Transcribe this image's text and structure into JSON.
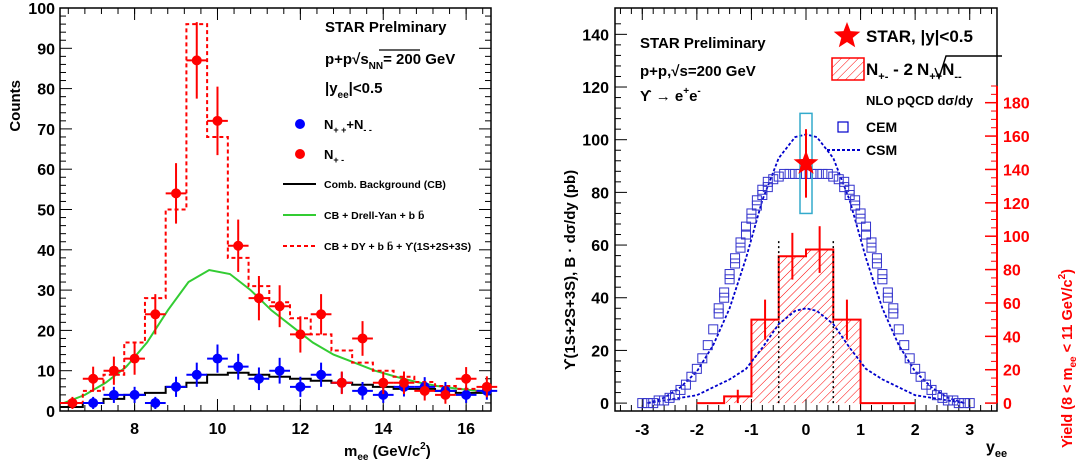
{
  "chart_data": [
    {
      "type": "scatter",
      "title": "STAR Prelminary",
      "subtitle_lines": [
        "p+p",
        "√s",
        "NN",
        "= 200 GeV",
        "|y",
        "ee",
        "|<0.5"
      ],
      "xlabel": "m",
      "xlabel_sub": "ee",
      "xlabel_unit": "(GeV/c",
      "xlabel_unit_sup": "2",
      "xlabel_unit_close": ")",
      "ylabel": "Counts",
      "xlim": [
        6.2,
        16.6
      ],
      "ylim": [
        0,
        100
      ],
      "xticks": [
        "8",
        "10",
        "12",
        "14",
        "16"
      ],
      "yticks": [
        "0",
        "10",
        "20",
        "30",
        "40",
        "50",
        "60",
        "70",
        "80",
        "90",
        "100"
      ],
      "legend": [
        {
          "label": "N",
          "sub": "+ +",
          "label2": "+N",
          "sub2": "- -",
          "kind": "marker",
          "color": "#0000ff"
        },
        {
          "label": "N",
          "sub": "+ -",
          "kind": "marker",
          "color": "#ff0000"
        },
        {
          "label": "Comb. Background (CB)",
          "kind": "line",
          "color": "#000000"
        },
        {
          "label": "CB + Drell-Yan + b b̄",
          "kind": "line",
          "color": "#33cc33"
        },
        {
          "label": "CB + DY + b b̄ + ϒ(1S+2S+3S)",
          "kind": "dash",
          "color": "#ff0000"
        }
      ],
      "series": [
        {
          "name": "N++ + N--",
          "color": "#0000ff",
          "x": [
            7.0,
            7.5,
            8.0,
            8.5,
            9.0,
            9.5,
            10.0,
            10.5,
            11.0,
            11.5,
            12.0,
            12.5,
            13.0,
            13.5,
            14.0,
            14.5,
            15.0,
            15.5,
            16.0,
            16.5
          ],
          "y": [
            2,
            4,
            4,
            2,
            6,
            9,
            13,
            11,
            8,
            10,
            6,
            9,
            7,
            5,
            4,
            6,
            6,
            5,
            4,
            5
          ],
          "err": [
            1.5,
            2,
            2,
            1.5,
            2.5,
            3,
            3.5,
            3.2,
            2.8,
            3.2,
            2.5,
            3,
            2.6,
            2.2,
            2,
            2.4,
            2.4,
            2.2,
            2,
            2.2
          ]
        },
        {
          "name": "N+-",
          "color": "#ff0000",
          "x": [
            6.5,
            7.0,
            7.5,
            8.0,
            8.5,
            9.0,
            9.5,
            10.0,
            10.5,
            11.0,
            11.5,
            12.0,
            12.5,
            13.0,
            13.5,
            14.0,
            14.5,
            15.0,
            15.5,
            16.0,
            16.5
          ],
          "y": [
            2,
            8,
            10,
            13,
            24,
            54,
            87,
            72,
            41,
            28,
            26,
            19,
            24,
            7,
            18,
            7,
            7,
            5,
            4,
            8,
            6
          ],
          "err": [
            1.5,
            3,
            3.5,
            4,
            5,
            7.5,
            9.5,
            8.5,
            6.5,
            5.5,
            5.2,
            4.5,
            5,
            2.8,
            4.3,
            2.8,
            2.8,
            2.4,
            2.2,
            2.9,
            2.6
          ]
        }
      ],
      "curves": [
        {
          "name": "Comb. Background (CB)",
          "color": "#000000",
          "step": true,
          "x": [
            6.2,
            6.75,
            7.25,
            7.75,
            8.25,
            8.75,
            9.25,
            9.75,
            10.25,
            10.75,
            11.25,
            11.75,
            12.25,
            12.75,
            13.25,
            13.75,
            14.25,
            14.75,
            15.25,
            15.75,
            16.25,
            16.6
          ],
          "y": [
            1,
            2,
            3,
            4,
            4.5,
            6,
            7,
            9,
            9.5,
            9,
            8.5,
            8,
            7.5,
            7,
            6.5,
            6,
            5.5,
            5.5,
            5,
            4.5,
            4.5,
            4.5
          ]
        },
        {
          "name": "CB + Drell-Yan + b b̄",
          "color": "#33cc33",
          "step": false,
          "x": [
            6.3,
            6.8,
            7.3,
            7.8,
            8.3,
            8.8,
            9.3,
            9.8,
            10.3,
            10.8,
            11.3,
            11.8,
            12.3,
            12.8,
            13.3,
            13.8,
            14.3,
            14.8,
            15.3,
            15.8,
            16.3,
            16.6
          ],
          "y": [
            2,
            4,
            7,
            11,
            17,
            25,
            32,
            35,
            34,
            30,
            25,
            21,
            17,
            14,
            12,
            10,
            8.5,
            7.2,
            6.2,
            5.5,
            5,
            4.5
          ]
        },
        {
          "name": "CB + DY + b b̄ + ϒ(1S+2S+3S)",
          "color": "#ff0000",
          "step": true,
          "dashed": true,
          "x": [
            6.2,
            6.75,
            7.25,
            7.75,
            8.25,
            8.75,
            9.25,
            9.75,
            10.25,
            10.75,
            11.25,
            11.75,
            12.25,
            12.75,
            13.25,
            13.75,
            14.25,
            14.75,
            15.25,
            15.75,
            16.25,
            16.6
          ],
          "y": [
            2,
            5,
            9,
            17,
            28,
            50,
            96,
            68,
            38,
            31,
            27,
            23,
            19,
            15,
            12,
            10,
            8.5,
            7.2,
            6.2,
            5.5,
            5,
            4.5
          ]
        }
      ]
    },
    {
      "type": "scatter",
      "title": "STAR Preliminary",
      "subtitle_lines": [
        "p+p,√s=200 GeV",
        "ϒ → e",
        "+",
        "e",
        "-"
      ],
      "xlabel": "y",
      "xlabel_sub": "ee",
      "ylabel": "ϒ(1S+2S+3S),  B · dσ/dy (pb)",
      "ylabel_right": "Yield (8 < m",
      "ylabel_right_sub": "ee",
      "ylabel_right_tail": " < 11 GeV/c",
      "ylabel_right_sup": "2",
      "ylabel_right_close": ")",
      "xlim": [
        -3.5,
        3.5
      ],
      "ylim": [
        -3,
        150
      ],
      "ylim_right": [
        0,
        190
      ],
      "xticks": [
        "-3",
        "-2",
        "-1",
        "0",
        "1",
        "2",
        "3"
      ],
      "yticks": [
        "0",
        "20",
        "40",
        "60",
        "80",
        "100",
        "120",
        "140"
      ],
      "yticks_right": [
        "0",
        "20",
        "40",
        "60",
        "80",
        "100",
        "120",
        "140",
        "160",
        "180"
      ],
      "legend": [
        {
          "label": "STAR, |y|<0.5",
          "kind": "star",
          "color": "#ff0000"
        },
        {
          "label": "N",
          "sub": "+-",
          "label2": " - 2",
          "sqrt": "N",
          "sqrt_sub": "++",
          "sqrt2": "N",
          "sqrt_sub2": "--",
          "kind": "hatch",
          "color": "#ff0000"
        },
        {
          "label": "NLO pQCD dσ/dy",
          "kind": "header",
          "color": "#000000"
        },
        {
          "label": "CEM",
          "kind": "square",
          "color": "#0000cc"
        },
        {
          "label": "CSM",
          "kind": "dash",
          "color": "#0000cc"
        }
      ],
      "star_point": {
        "x": 0.0,
        "y": 91,
        "err": 13,
        "box_y": [
          72,
          110
        ]
      },
      "cem": {
        "color": "#3333cc",
        "x": [
          -3.0,
          -2.9,
          -2.8,
          -2.7,
          -2.6,
          -2.5,
          -2.4,
          -2.3,
          -2.2,
          -2.1,
          -2.0,
          -1.9,
          -1.8,
          -1.7,
          -1.6,
          -1.5,
          -1.4,
          -1.3,
          -1.2,
          -1.1,
          -1.0,
          -0.9,
          -0.8,
          -0.7,
          -0.6,
          -0.5,
          -0.4,
          -0.3,
          -0.2,
          -0.1,
          0.0,
          0.1,
          0.2,
          0.3,
          0.4,
          0.5,
          0.6,
          0.7,
          0.8,
          0.9,
          1.0,
          1.1,
          1.2,
          1.3,
          1.4,
          1.5,
          1.6,
          1.7,
          1.8,
          1.9,
          2.0,
          2.1,
          2.2,
          2.3,
          2.4,
          2.5,
          2.6,
          2.7,
          2.8,
          2.9,
          3.0
        ],
        "y": [
          0,
          0,
          0,
          1,
          1,
          2,
          3,
          5,
          7,
          10,
          13,
          17,
          22,
          28,
          34,
          40,
          47,
          53,
          59,
          64,
          70,
          75,
          79,
          82,
          85,
          86,
          87,
          87,
          87,
          87,
          87,
          87,
          87,
          87,
          87,
          86,
          85,
          82,
          79,
          75,
          70,
          64,
          59,
          53,
          47,
          40,
          34,
          28,
          22,
          17,
          13,
          10,
          7,
          5,
          3,
          2,
          1,
          1,
          0,
          0,
          0
        ],
        "upper": [
          0,
          0,
          0,
          1,
          1,
          2,
          3,
          5,
          8,
          11,
          14,
          18,
          23,
          29,
          36,
          42,
          49,
          55,
          61,
          67,
          72,
          77,
          81,
          84,
          86,
          87,
          87,
          87,
          87,
          87,
          87,
          87,
          87,
          87,
          87,
          87,
          86,
          84,
          81,
          77,
          72,
          67,
          61,
          55,
          49,
          42,
          36,
          29,
          23,
          18,
          14,
          11,
          8,
          5,
          3,
          2,
          1,
          1,
          0,
          0,
          0
        ]
      },
      "csm": {
        "color": "#0000cc",
        "upper": {
          "x": [
            -2.9,
            -2.6,
            -2.3,
            -2.0,
            -1.7,
            -1.4,
            -1.1,
            -0.8,
            -0.5,
            -0.2,
            0.0,
            0.2,
            0.5,
            0.8,
            1.1,
            1.4,
            1.7,
            2.0,
            2.3,
            2.6,
            2.9
          ],
          "y": [
            0,
            2,
            6,
            12,
            22,
            36,
            55,
            77,
            93,
            101,
            102,
            101,
            93,
            77,
            55,
            36,
            22,
            12,
            6,
            2,
            0
          ]
        },
        "lower": {
          "x": [
            -2.9,
            -2.6,
            -2.3,
            -2.0,
            -1.7,
            -1.4,
            -1.1,
            -0.8,
            -0.5,
            -0.2,
            0.0,
            0.2,
            0.5,
            0.8,
            1.1,
            1.4,
            1.7,
            2.0,
            2.3,
            2.6,
            2.9
          ],
          "y": [
            0,
            1,
            2,
            3,
            6,
            9,
            13,
            21,
            30,
            35,
            36,
            35,
            30,
            21,
            13,
            9,
            6,
            3,
            2,
            1,
            0
          ]
        }
      },
      "yield_hist": {
        "color": "#ff0000",
        "edges": [
          -2.0,
          -1.5,
          -1.0,
          -0.5,
          0.0,
          0.5,
          1.0,
          1.5,
          2.0
        ],
        "values_right": [
          0,
          4,
          50,
          88,
          92,
          50,
          0,
          0
        ],
        "err_right": [
          0,
          4,
          12,
          14,
          14,
          12,
          0,
          0
        ]
      },
      "vlines_x": [
        -0.5,
        0.5
      ],
      "vlines_ymax": 62
    }
  ]
}
